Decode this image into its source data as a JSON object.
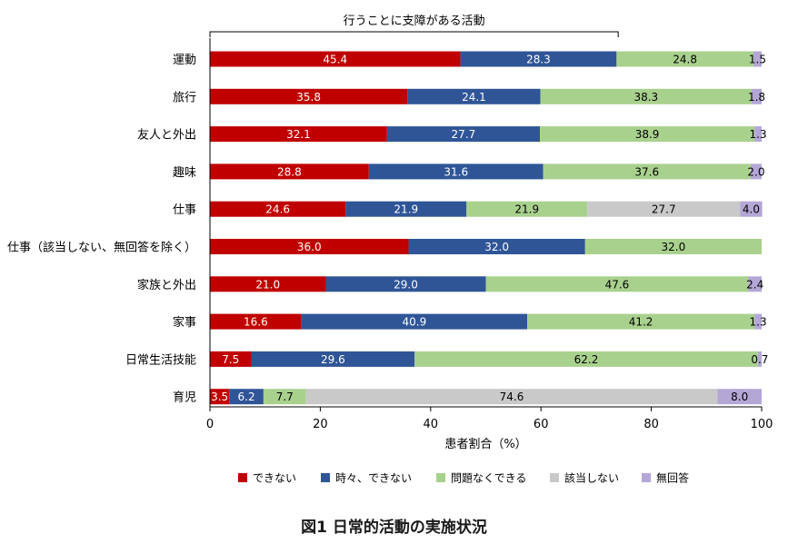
{
  "chart_data": {
    "type": "bar",
    "orientation": "horizontal",
    "stacked": true,
    "bracket_label": "行うことに支障がある活動",
    "bracket_range": [
      0,
      74
    ],
    "categories": [
      "運動",
      "旅行",
      "友人と外出",
      "趣味",
      "仕事",
      "仕事（該当しない、無回答を除く）",
      "家族と外出",
      "家事",
      "日常生活技能",
      "育児"
    ],
    "series": [
      {
        "name": "できない",
        "color": "#c00000",
        "label_color": "#ffffff",
        "values": [
          45.4,
          35.8,
          32.1,
          28.8,
          24.6,
          36.0,
          21.0,
          16.6,
          7.5,
          3.5
        ],
        "labels": [
          "45.4",
          "35.8",
          "32.1",
          "28.8",
          "24.6",
          "36.0",
          "21.0",
          "16.6",
          "7.5",
          "3.5"
        ]
      },
      {
        "name": "時々、できない",
        "color": "#2f5597",
        "label_color": "#ffffff",
        "values": [
          28.3,
          24.1,
          27.7,
          31.6,
          21.9,
          32.0,
          29.0,
          40.9,
          29.6,
          6.2
        ],
        "labels": [
          "28.3",
          "24.1",
          "27.7",
          "31.6",
          "21.9",
          "32.0",
          "29.0",
          "40.9",
          "29.6",
          "6.2"
        ]
      },
      {
        "name": "問題なくできる",
        "color": "#a9d18e",
        "label_color": "#000000",
        "values": [
          24.8,
          38.3,
          38.9,
          37.6,
          21.9,
          32.0,
          47.6,
          41.2,
          62.2,
          7.7
        ],
        "labels": [
          "24.8",
          "38.3",
          "38.9",
          "37.6",
          "21.9",
          "32.0",
          "47.6",
          "41.2",
          "62.2",
          "7.7"
        ]
      },
      {
        "name": "該当しない",
        "color": "#c9c9c9",
        "label_color": "#000000",
        "values": [
          0,
          0,
          0,
          0,
          27.7,
          0,
          0,
          0,
          0,
          74.6
        ],
        "labels": [
          "",
          "",
          "",
          "",
          "27.7",
          "",
          "",
          "",
          "",
          "74.6"
        ]
      },
      {
        "name": "無回答",
        "color": "#b4a7d6",
        "label_color": "#000000",
        "values": [
          1.5,
          1.8,
          1.3,
          2.0,
          4.0,
          0,
          2.4,
          1.3,
          0.7,
          8.0
        ],
        "labels": [
          "1.5",
          "1.8",
          "1.3",
          "2.0",
          "4.0",
          "",
          "2.4",
          "1.3",
          "0.7",
          "8.0"
        ]
      }
    ],
    "xlabel": "患者割合（%）",
    "xlim": [
      0,
      100
    ],
    "xticks": [
      0,
      20,
      40,
      60,
      80,
      100
    ],
    "xtick_labels": [
      "0",
      "20",
      "40",
      "60",
      "80",
      "100"
    ],
    "legend_position": "bottom",
    "grid": false
  },
  "caption": "図1 日常的活動の実施状況"
}
